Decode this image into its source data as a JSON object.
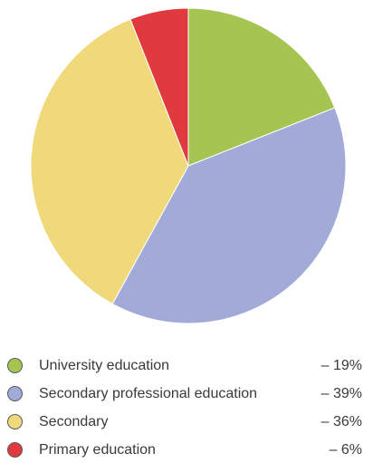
{
  "chart_data": {
    "type": "pie",
    "title": "",
    "slices": [
      {
        "label": "University education",
        "value": 19,
        "value_label": "– 19%",
        "color": "#a5c452"
      },
      {
        "label": "Secondary professional education",
        "value": 39,
        "value_label": "– 39%",
        "color": "#a2aad8"
      },
      {
        "label": "Secondary",
        "value": 36,
        "value_label": "– 36%",
        "color": "#f0d97a"
      },
      {
        "label": "Primary education",
        "value": 6,
        "value_label": "– 6%",
        "color": "#e0393e"
      }
    ],
    "start": "12 o'clock",
    "direction": "clockwise",
    "legend_position": "bottom"
  }
}
